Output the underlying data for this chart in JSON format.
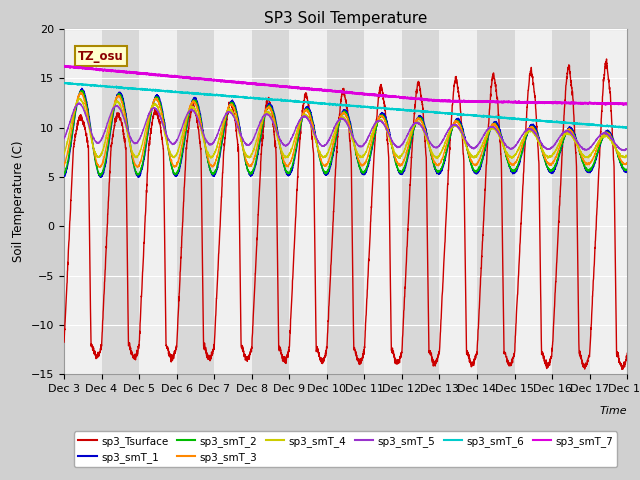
{
  "title": "SP3 Soil Temperature",
  "ylabel": "Soil Temperature (C)",
  "xlabel": "Time",
  "annotation": "TZ_osu",
  "ylim": [
    -15,
    20
  ],
  "xtick_labels": [
    "Dec 3",
    "Dec 4",
    "Dec 5",
    "Dec 6",
    "Dec 7",
    "Dec 8",
    "Dec 9",
    "Dec 10",
    "Dec 11",
    "Dec 12",
    "Dec 13",
    "Dec 14",
    "Dec 15",
    "Dec 16",
    "Dec 17",
    "Dec 18"
  ],
  "series_order": [
    "sp3_Tsurface",
    "sp3_smT_1",
    "sp3_smT_2",
    "sp3_smT_3",
    "sp3_smT_4",
    "sp3_smT_5",
    "sp3_smT_6",
    "sp3_smT_7"
  ],
  "series": {
    "sp3_Tsurface": {
      "color": "#cc0000",
      "lw": 1.0
    },
    "sp3_smT_1": {
      "color": "#0000cc",
      "lw": 1.0
    },
    "sp3_smT_2": {
      "color": "#00bb00",
      "lw": 1.0
    },
    "sp3_smT_3": {
      "color": "#ff8800",
      "lw": 1.0
    },
    "sp3_smT_4": {
      "color": "#cccc00",
      "lw": 1.0
    },
    "sp3_smT_5": {
      "color": "#9933cc",
      "lw": 1.0
    },
    "sp3_smT_6": {
      "color": "#00cccc",
      "lw": 1.2
    },
    "sp3_smT_7": {
      "color": "#dd00dd",
      "lw": 1.5
    }
  },
  "legend_order": [
    "sp3_Tsurface",
    "sp3_smT_1",
    "sp3_smT_2",
    "sp3_smT_3",
    "sp3_smT_4",
    "sp3_smT_5",
    "sp3_smT_6",
    "sp3_smT_7"
  ]
}
